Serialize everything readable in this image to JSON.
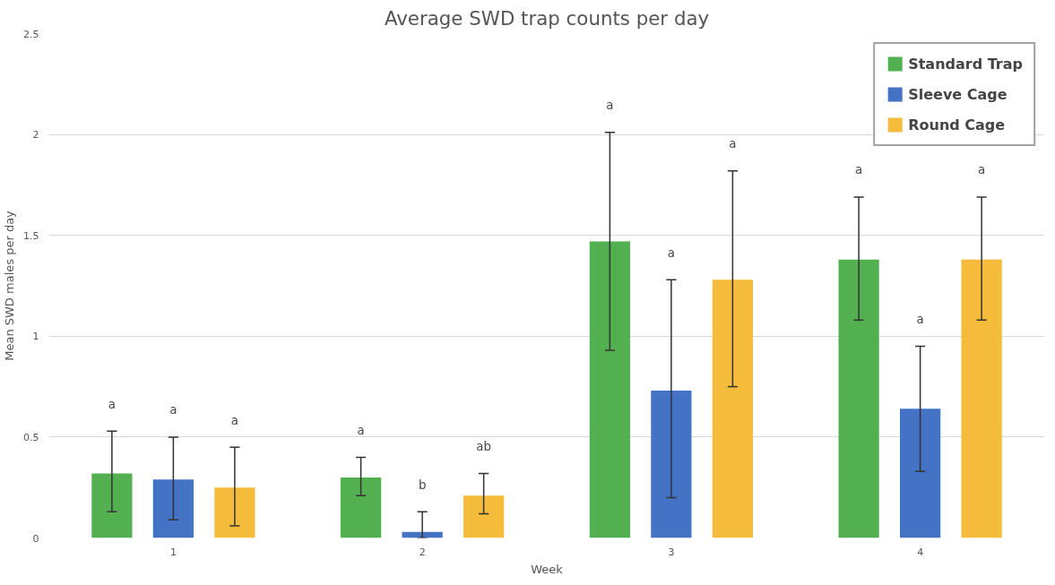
{
  "chart_data": {
    "type": "bar",
    "title": "Average SWD trap counts per day",
    "xlabel": "Week",
    "ylabel": "Mean SWD males per day",
    "categories": [
      "1",
      "2",
      "3",
      "4"
    ],
    "series": [
      {
        "name": "Standard Trap",
        "color": "#52b050",
        "values": [
          0.32,
          0.3,
          1.47,
          1.38
        ],
        "errors": [
          [
            0.13,
            0.53
          ],
          [
            0.21,
            0.4
          ],
          [
            0.93,
            2.01
          ],
          [
            1.08,
            1.69
          ]
        ]
      },
      {
        "name": "Sleeve Cage",
        "color": "#4472c4",
        "values": [
          0.29,
          0.03,
          0.73,
          0.64
        ],
        "errors": [
          [
            0.09,
            0.5
          ],
          [
            0,
            0.13
          ],
          [
            0.2,
            1.28
          ],
          [
            0.33,
            0.95
          ]
        ]
      },
      {
        "name": "Round Cage",
        "color": "#f4bc3a",
        "values": [
          0.25,
          0.21,
          1.28,
          1.38
        ],
        "errors": [
          [
            0.06,
            0.45
          ],
          [
            0.12,
            0.32
          ],
          [
            0.75,
            1.82
          ],
          [
            1.08,
            1.69
          ]
        ]
      }
    ],
    "annotations": [
      "a",
      "a",
      "a",
      "a",
      "b",
      "ab",
      "a",
      "a",
      "a",
      "a",
      "a",
      "a"
    ],
    "ylim": [
      0,
      2.5
    ],
    "yticks": [
      0,
      0.5,
      1,
      1.5,
      2,
      2.5
    ],
    "grid": "y",
    "legend": "top right"
  }
}
